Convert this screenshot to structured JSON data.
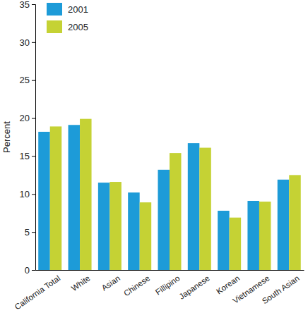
{
  "chart_data": {
    "type": "bar",
    "y_label": "Percent",
    "categories": [
      "California Total",
      "White",
      "Asian",
      "Chinese",
      "Fillipino",
      "Japanese",
      "Korean",
      "Vietnamese",
      "South Asian"
    ],
    "series": [
      {
        "name": "2001",
        "color": "#1d9bd8",
        "values": [
          18.2,
          19.1,
          11.5,
          10.2,
          13.2,
          16.7,
          7.8,
          9.1,
          11.9
        ]
      },
      {
        "name": "2005",
        "color": "#c5d234",
        "values": [
          18.9,
          19.9,
          11.6,
          8.9,
          15.4,
          16.1,
          6.9,
          9.0,
          12.5
        ]
      }
    ],
    "ylim": [
      0,
      35
    ],
    "yticks": [
      0,
      5,
      10,
      15,
      20,
      25,
      30,
      35
    ],
    "grid": false,
    "legend": "upper left"
  }
}
